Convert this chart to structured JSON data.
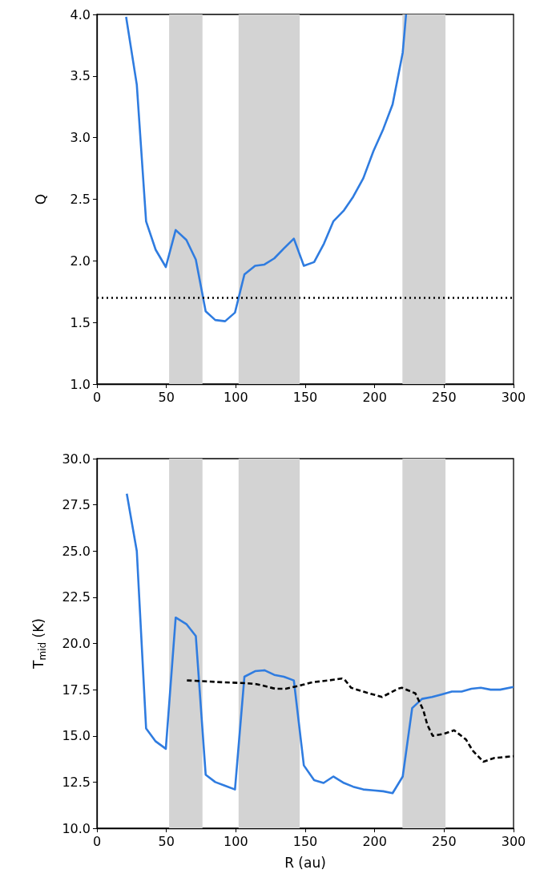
{
  "chart_data": [
    {
      "type": "line",
      "ylabel": "Q",
      "xlim": [
        0,
        300
      ],
      "xticks": [
        0,
        50,
        100,
        150,
        200,
        250,
        300
      ],
      "ylim": [
        1,
        4
      ],
      "yticks": [
        {
          "value": 1,
          "label": "1.0"
        },
        {
          "value": 1.5,
          "label": "1.5"
        },
        {
          "value": 2,
          "label": "2.0"
        },
        {
          "value": 2.5,
          "label": "2.5"
        },
        {
          "value": 3,
          "label": "3.0"
        },
        {
          "value": 3.5,
          "label": "3.5"
        },
        {
          "value": 4,
          "label": "4.0"
        }
      ],
      "series": [
        {
          "color": "#2f7ce0",
          "line_style": "solid",
          "x": [
            21,
            28.7,
            35.4,
            42.3,
            49.6,
            56.7,
            64.4,
            71.2,
            78.3,
            85.2,
            92.3,
            99.4,
            106.2,
            113.9,
            120.6,
            127.7,
            134.6,
            141.8,
            149,
            156.4,
            163.5,
            170.2,
            177.9,
            184.5,
            191.8,
            199.1,
            206.2,
            212.9,
            220.2,
            222.6
          ],
          "values": [
            3.98,
            3.43,
            2.32,
            2.09,
            1.95,
            2.25,
            2.17,
            2.01,
            1.59,
            1.52,
            1.51,
            1.58,
            1.89,
            1.96,
            1.97,
            2.02,
            2.1,
            2.18,
            1.96,
            1.99,
            2.14,
            2.32,
            2.41,
            2.52,
            2.67,
            2.89,
            3.07,
            3.27,
            3.69,
            4.0
          ]
        }
      ],
      "bands": [
        {
          "axis": "x",
          "from": 52,
          "to": 76,
          "color": "#d3d3d3"
        },
        {
          "axis": "x",
          "from": 102,
          "to": 146,
          "color": "#d3d3d3"
        },
        {
          "axis": "x",
          "from": 220,
          "to": 251,
          "color": "#d3d3d3"
        }
      ],
      "ref_lines": [
        {
          "axis": "y",
          "value": 1.7,
          "color": "#000000",
          "line_style": "dotted"
        }
      ]
    },
    {
      "type": "line",
      "xlabel": "R (au)",
      "ylabel": "T$_{mid}$ (K)",
      "xlim": [
        0,
        300
      ],
      "xticks": [
        0,
        50,
        100,
        150,
        200,
        250,
        300
      ],
      "ylim": [
        10,
        30
      ],
      "yticks": [
        {
          "value": 10,
          "label": "10.0"
        },
        {
          "value": 12.5,
          "label": "12.5"
        },
        {
          "value": 15,
          "label": "15.0"
        },
        {
          "value": 17.5,
          "label": "17.5"
        },
        {
          "value": 20,
          "label": "20.0"
        },
        {
          "value": 22.5,
          "label": "22.5"
        },
        {
          "value": 25,
          "label": "25.0"
        },
        {
          "value": 27.5,
          "label": "27.5"
        },
        {
          "value": 30,
          "label": "30.0"
        }
      ],
      "series": [
        {
          "color": "#2f7ce0",
          "line_style": "solid",
          "x": [
            21.5,
            28.7,
            35.4,
            42.3,
            49.6,
            56.7,
            64.4,
            71.2,
            78.3,
            85.2,
            92.3,
            99.4,
            106.2,
            113.9,
            120.6,
            127.7,
            134.6,
            141.8,
            149,
            156.4,
            163.2,
            170.2,
            177.9,
            184.5,
            191.8,
            199.1,
            206.2,
            212.9,
            220.2,
            227,
            234.1,
            241.4,
            248.5,
            255.6,
            262.6,
            269.7,
            276.4,
            283.5,
            290.4,
            300
          ],
          "values": [
            28.1,
            25.0,
            15.4,
            14.7,
            14.3,
            21.4,
            21.05,
            20.4,
            12.9,
            12.5,
            12.3,
            12.1,
            18.2,
            18.5,
            18.55,
            18.3,
            18.2,
            18.0,
            13.4,
            12.6,
            12.45,
            12.8,
            12.45,
            12.25,
            12.1,
            12.05,
            12.0,
            11.9,
            12.8,
            16.5,
            17.0,
            17.1,
            17.25,
            17.4,
            17.4,
            17.55,
            17.6,
            17.5,
            17.5,
            17.65
          ]
        },
        {
          "color": "#000000",
          "line_style": "dashed",
          "x": [
            64.8,
            78.3,
            90,
            107.1,
            114.8,
            120.6,
            128.3,
            136,
            141.8,
            147.5,
            155.2,
            166.8,
            176.4,
            178.3,
            183.1,
            193.7,
            205.3,
            216.8,
            219.6,
            229.3,
            235,
            237.9,
            241.8,
            249.5,
            257.2,
            265.8,
            270.6,
            278.3,
            286,
            300
          ],
          "values": [
            18.0,
            17.95,
            17.9,
            17.85,
            17.8,
            17.7,
            17.55,
            17.55,
            17.65,
            17.75,
            17.9,
            18.0,
            18.1,
            18.05,
            17.6,
            17.35,
            17.1,
            17.55,
            17.6,
            17.3,
            16.4,
            15.6,
            15.0,
            15.1,
            15.3,
            14.8,
            14.2,
            13.6,
            13.8,
            13.9
          ]
        }
      ],
      "bands": [
        {
          "axis": "x",
          "from": 52,
          "to": 76,
          "color": "#d3d3d3"
        },
        {
          "axis": "x",
          "from": 102,
          "to": 146,
          "color": "#d3d3d3"
        },
        {
          "axis": "x",
          "from": 220,
          "to": 251,
          "color": "#d3d3d3"
        }
      ]
    }
  ]
}
